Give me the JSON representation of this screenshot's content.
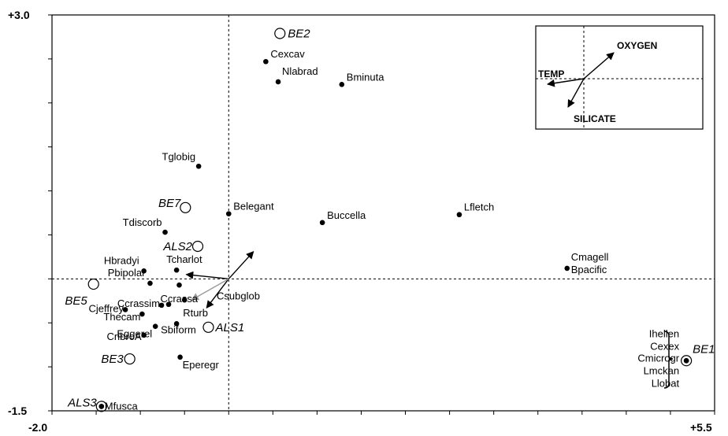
{
  "chart_data": {
    "type": "scatter",
    "title": "",
    "xlabel": "",
    "ylabel": "",
    "xlim": [
      -2.0,
      5.5
    ],
    "ylim": [
      -1.5,
      3.0
    ],
    "x_tick_labels": {
      "min": "-2.0",
      "max": "+5.5"
    },
    "y_tick_labels": {
      "max": "+3.0",
      "min": "-1.5"
    },
    "reference_lines": {
      "x": 0,
      "y": 0
    },
    "grid": false,
    "legend": "none",
    "species": [
      {
        "label": "Cexcav",
        "x": 0.42,
        "y": 2.47
      },
      {
        "label": "Nlabrad",
        "x": 0.56,
        "y": 2.24
      },
      {
        "label": "Bminuta",
        "x": 1.28,
        "y": 2.21
      },
      {
        "label": "Tglobig",
        "x": -0.34,
        "y": 1.28
      },
      {
        "label": "Belegant",
        "x": 0.0,
        "y": 0.74
      },
      {
        "label": "Buccella",
        "x": 1.06,
        "y": 0.64
      },
      {
        "label": "Lfletch",
        "x": 2.61,
        "y": 0.73
      },
      {
        "label": "Tdiscorb",
        "x": -0.72,
        "y": 0.53
      },
      {
        "label": "Hbradyi",
        "x": -0.96,
        "y": 0.09
      },
      {
        "label": "Tcharlot",
        "x": -0.59,
        "y": 0.1
      },
      {
        "label": "Pbipolar",
        "x": -0.89,
        "y": -0.05
      },
      {
        "label": "Ccrassa",
        "x": -0.56,
        "y": -0.07
      },
      {
        "label": "Ccrassim",
        "x": -0.76,
        "y": -0.3
      },
      {
        "label": "Csubglob",
        "x": -0.68,
        "y": -0.29
      },
      {
        "label": "Rturb",
        "x": -0.5,
        "y": -0.24
      },
      {
        "label": "Cjeffrey",
        "x": -1.17,
        "y": -0.35
      },
      {
        "label": "Thecam",
        "x": -0.98,
        "y": -0.4
      },
      {
        "label": "Sbiform",
        "x": -0.59,
        "y": -0.51
      },
      {
        "label": "Eggerel",
        "x": -0.83,
        "y": -0.54
      },
      {
        "label": "CribroA",
        "x": -0.96,
        "y": -0.64
      },
      {
        "label": "Eperegr",
        "x": -0.55,
        "y": -0.89
      },
      {
        "label": "Cmagell",
        "x": 3.83,
        "y": 0.12
      },
      {
        "label": "Bpacific",
        "x": 3.83,
        "y": 0.12
      },
      {
        "label": "Ihellen",
        "x": 5.18,
        "y": -0.93
      },
      {
        "label": "Cexex",
        "x": 5.18,
        "y": -0.93
      },
      {
        "label": "Cmicrogr",
        "x": 5.18,
        "y": -0.93
      },
      {
        "label": "Lmckan",
        "x": 5.18,
        "y": -0.93
      },
      {
        "label": "Llobat",
        "x": 5.18,
        "y": -0.93
      },
      {
        "label": "Mfusca",
        "x": -1.44,
        "y": -1.45
      }
    ],
    "stations": [
      {
        "label": "BE2",
        "x": 0.58,
        "y": 2.79
      },
      {
        "label": "BE7",
        "x": -0.49,
        "y": 0.81
      },
      {
        "label": "ALS2",
        "x": -0.35,
        "y": 0.37
      },
      {
        "label": "BE5",
        "x": -1.53,
        "y": -0.06
      },
      {
        "label": "ALS1",
        "x": -0.23,
        "y": -0.55
      },
      {
        "label": "BE3",
        "x": -1.12,
        "y": -0.91
      },
      {
        "label": "ALS3",
        "x": -1.44,
        "y": -1.45
      },
      {
        "label": "BE1",
        "x": 5.18,
        "y": -0.93
      }
    ],
    "environment_vectors": [
      {
        "label": "OXYGEN",
        "dx": 0.28,
        "dy": 0.31
      },
      {
        "label": "TEMP",
        "dx": -0.48,
        "dy": 0.05
      },
      {
        "label": "SILICATE",
        "dx": -0.25,
        "dy": -0.33
      },
      {
        "label": "",
        "dx": -0.42,
        "dy": -0.24
      }
    ],
    "inset_labels": {
      "oxygen": "OXYGEN",
      "temp": "TEMP",
      "silicate": "SILICATE"
    }
  }
}
